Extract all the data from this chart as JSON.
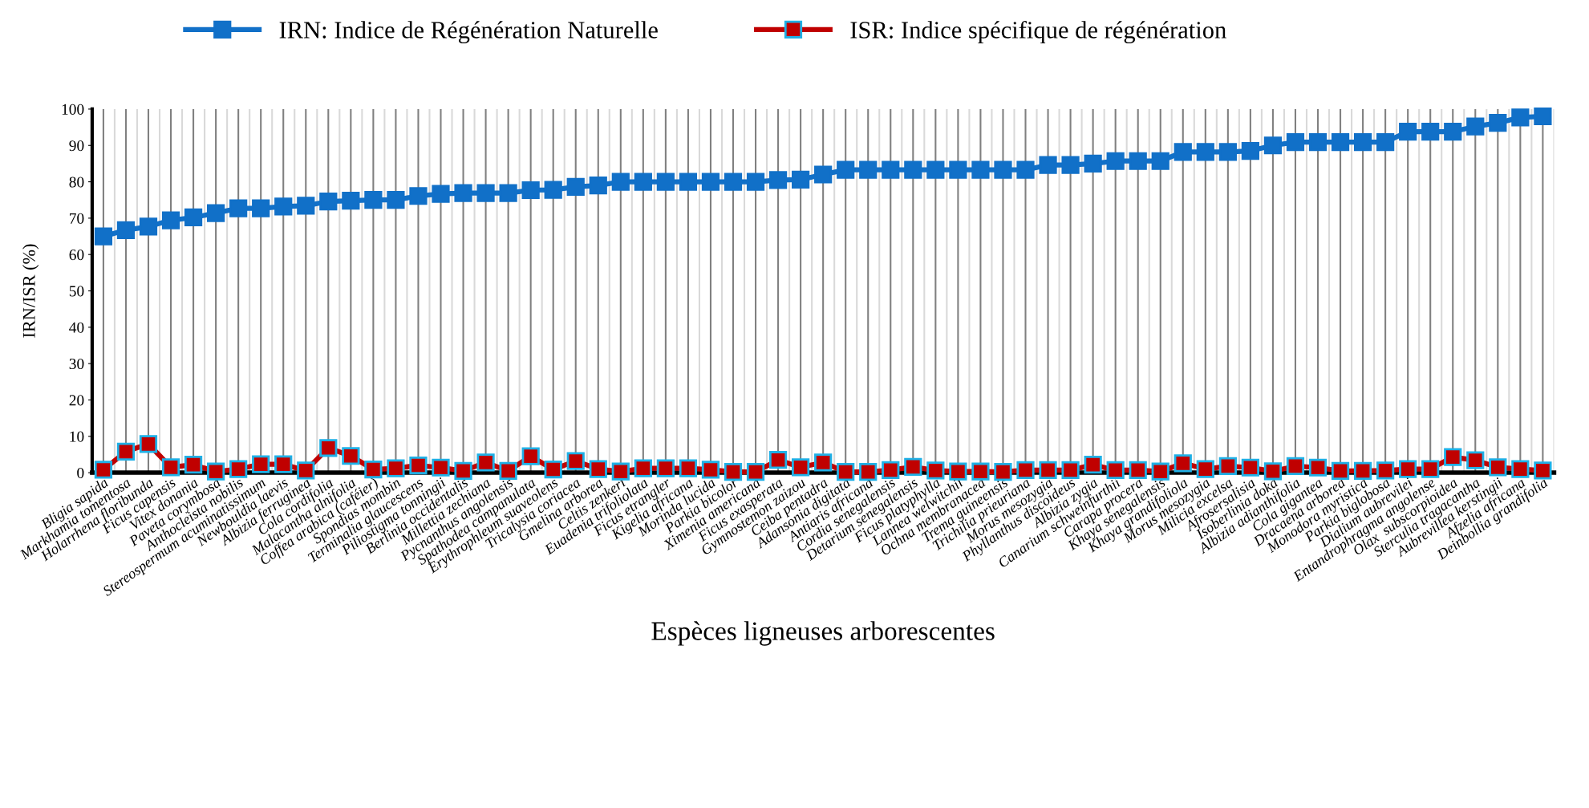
{
  "chart_data": {
    "type": "line",
    "xlabel": "Espèces ligneuses arborescentes",
    "ylabel": "IRN/ISR (%)",
    "categories": [
      "Bligia sapida",
      "Markhamia tomentosa",
      "Holarrhena floribunda",
      "Ficus capensis",
      "Vitex donania",
      "Paveta corymbosa",
      "Anthocleista nobilis",
      "Stereospermum acuminatissimum",
      "Newbouldia laevis",
      "Albizia ferruginea",
      "Cola cordifolia",
      "Malacantha alnifolia",
      "Coffea arabica (caféier)",
      "Spondias mombin",
      "Terminalia glaucescens",
      "Piliostigma tonningii",
      "Berlinia occidentalis",
      "Millettia zechiana",
      "Pycnanthus angolensis",
      "Spathodea campanulata",
      "Erythrophleum suaveolens",
      "Tricalysia coriacea",
      "Gmelina arborea",
      "Celtis zenkeri",
      "Euadenia trifoliolata",
      "Ficus etrangler",
      "Kigelia africana",
      "Morinda lucida",
      "Parkia bicolor",
      "Ximenia americana",
      "Ficus exasperata",
      "Gymnostemon zaizou",
      "Ceiba pentadra",
      "Adansonia digitata",
      "Antiaris africana",
      "Cordia senegalensis",
      "Detarium senegalensis",
      "Ficus platyphylla",
      "Lannea welwitchii",
      "Ochna membranacea",
      "Trema guineensis",
      "Trichilia prieuriana",
      "Morus mesozygia",
      "Phyllanthus discoideus",
      "Albizia zygia",
      "Canarium schweinfurthii",
      "Carapa procera",
      "Khaya senegalensis",
      "Khaya grandifoliola",
      "Morus mesozygia",
      "Milicia excelsa",
      "Afrosersalisia",
      "Isoberlinia doka",
      "Albizia adianthifolia",
      "Cola gigantea",
      "Dracaena arborea",
      "Monodora myristica",
      "Parkia biglobosa",
      "Dialium aubrevilei",
      "Entandrophragma angolense",
      "Olax  subscorpioidea",
      "Sterculia tragacantha",
      "Aubrevillea kerstingii",
      "Afzelia africana",
      "Deinbollia grandifolia"
    ],
    "series": [
      {
        "name": "IRN: Indice de Régénération Naturelle",
        "color": "#1170c8",
        "values": [
          65,
          66.7,
          67.7,
          69.4,
          70.2,
          71.4,
          72.7,
          72.7,
          73.2,
          73.4,
          74.6,
          74.8,
          75,
          75,
          76.1,
          76.7,
          76.9,
          76.9,
          76.9,
          77.7,
          77.8,
          78.6,
          79,
          80,
          80,
          80,
          80,
          80,
          80,
          80,
          80.5,
          80.6,
          82,
          83.3,
          83.3,
          83.3,
          83.3,
          83.3,
          83.3,
          83.3,
          83.3,
          83.3,
          84.6,
          84.6,
          85,
          85.7,
          85.7,
          85.7,
          88.2,
          88.2,
          88.2,
          88.5,
          90,
          90.9,
          90.9,
          90.9,
          90.9,
          90.9,
          93.8,
          93.8,
          93.8,
          95.2,
          96.2,
          97.7,
          98
        ]
      },
      {
        "name": "ISR: Indice spécifique de régénération",
        "color": "#c00000",
        "values": [
          0.8,
          5.8,
          7.9,
          1.5,
          2.2,
          0.3,
          1,
          2.3,
          2.3,
          0.6,
          6.8,
          4.6,
          0.9,
          1.2,
          2,
          1.4,
          0.5,
          2.8,
          0.5,
          4.5,
          0.9,
          3.2,
          1,
          0.3,
          1.2,
          1.2,
          1.2,
          0.8,
          0.2,
          0.2,
          3.5,
          1.5,
          2.8,
          0.2,
          0.2,
          0.7,
          1.6,
          0.6,
          0.3,
          0.3,
          0.2,
          0.7,
          0.7,
          0.7,
          2.2,
          0.7,
          0.7,
          0.3,
          2.6,
          1,
          1.8,
          1.4,
          0.4,
          1.8,
          1.4,
          0.5,
          0.5,
          0.6,
          1,
          1,
          4.3,
          3.4,
          1.5,
          1,
          0.6
        ]
      }
    ],
    "ylim": [
      0,
      100
    ],
    "yticks": [
      0,
      10,
      20,
      30,
      40,
      50,
      60,
      70,
      80,
      90,
      100
    ],
    "grid": "x",
    "legend": "top",
    "marker": "square",
    "line_style": "solid"
  }
}
